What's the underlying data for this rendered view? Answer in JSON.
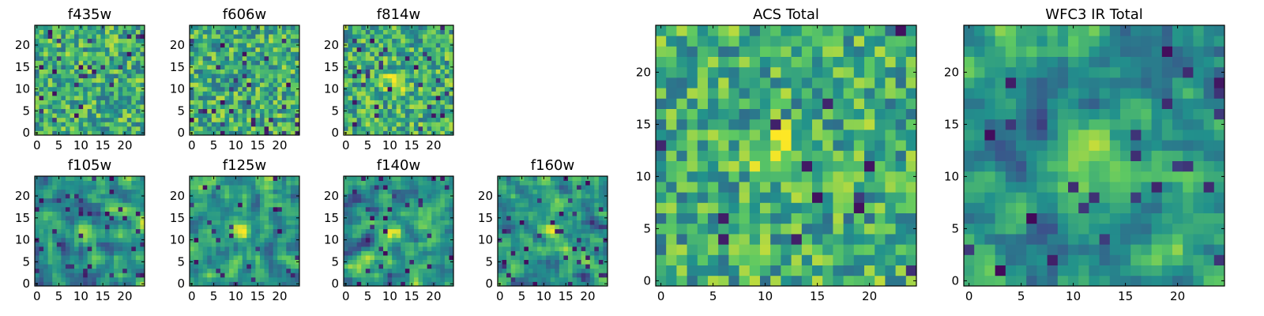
{
  "colormap": [
    "#440154",
    "#3b528b",
    "#21918c",
    "#5ec962",
    "#fde725"
  ],
  "chart_data": [
    {
      "type": "heatmap",
      "title": "f435w",
      "grid_size": 25,
      "xlim": [
        0,
        24
      ],
      "ylim": [
        0,
        24
      ],
      "xticks": [
        0,
        5,
        10,
        15,
        20
      ],
      "yticks": [
        0,
        5,
        10,
        15,
        20
      ],
      "source_peak": null,
      "texture": "noise",
      "dark_fraction": 0.04
    },
    {
      "type": "heatmap",
      "title": "f606w",
      "grid_size": 25,
      "xlim": [
        0,
        24
      ],
      "ylim": [
        0,
        24
      ],
      "xticks": [
        0,
        5,
        10,
        15,
        20
      ],
      "yticks": [
        0,
        5,
        10,
        15,
        20
      ],
      "source_peak": null,
      "texture": "noise",
      "dark_fraction": 0.05
    },
    {
      "type": "heatmap",
      "title": "f814w",
      "grid_size": 25,
      "xlim": [
        0,
        24
      ],
      "ylim": [
        0,
        24
      ],
      "xticks": [
        0,
        5,
        10,
        15,
        20
      ],
      "yticks": [
        0,
        5,
        10,
        15,
        20
      ],
      "source_peak": [
        11,
        12
      ],
      "texture": "noise",
      "dark_fraction": 0.04
    },
    {
      "type": "heatmap",
      "title": "f105w",
      "grid_size": 25,
      "xlim": [
        0,
        24
      ],
      "ylim": [
        0,
        24
      ],
      "xticks": [
        0,
        5,
        10,
        15,
        20
      ],
      "yticks": [
        0,
        5,
        10,
        15,
        20
      ],
      "source_peak": [
        11,
        12
      ],
      "texture": "smooth",
      "dark_fraction": 0.06
    },
    {
      "type": "heatmap",
      "title": "f125w",
      "grid_size": 25,
      "xlim": [
        0,
        24
      ],
      "ylim": [
        0,
        24
      ],
      "xticks": [
        0,
        5,
        10,
        15,
        20
      ],
      "yticks": [
        0,
        5,
        10,
        15,
        20
      ],
      "source_peak": [
        11,
        12
      ],
      "texture": "smooth",
      "dark_fraction": 0.04
    },
    {
      "type": "heatmap",
      "title": "f140w",
      "grid_size": 25,
      "xlim": [
        0,
        24
      ],
      "ylim": [
        0,
        24
      ],
      "xticks": [
        0,
        5,
        10,
        15,
        20
      ],
      "yticks": [
        0,
        5,
        10,
        15,
        20
      ],
      "source_peak": [
        11,
        12
      ],
      "texture": "smooth",
      "dark_fraction": 0.04
    },
    {
      "type": "heatmap",
      "title": "f160w",
      "grid_size": 25,
      "xlim": [
        0,
        24
      ],
      "ylim": [
        0,
        24
      ],
      "xticks": [
        0,
        5,
        10,
        15,
        20
      ],
      "yticks": [
        0,
        5,
        10,
        15,
        20
      ],
      "source_peak": [
        12,
        12
      ],
      "texture": "smooth",
      "dark_fraction": 0.06
    },
    {
      "type": "heatmap",
      "title": "ACS Total",
      "grid_size": 25,
      "xlim": [
        0,
        24
      ],
      "ylim": [
        0,
        24
      ],
      "xticks": [
        0,
        5,
        10,
        15,
        20
      ],
      "yticks": [
        0,
        5,
        10,
        15,
        20
      ],
      "source_peak": [
        11,
        12
      ],
      "texture": "noise",
      "dark_fraction": 0.03
    },
    {
      "type": "heatmap",
      "title": "WFC3 IR Total",
      "grid_size": 25,
      "xlim": [
        0,
        24
      ],
      "ylim": [
        0,
        24
      ],
      "xticks": [
        0,
        5,
        10,
        15,
        20
      ],
      "yticks": [
        0,
        5,
        10,
        15,
        20
      ],
      "source_peak": [
        12,
        13
      ],
      "texture": "smooth",
      "dark_fraction": 0.05
    }
  ]
}
